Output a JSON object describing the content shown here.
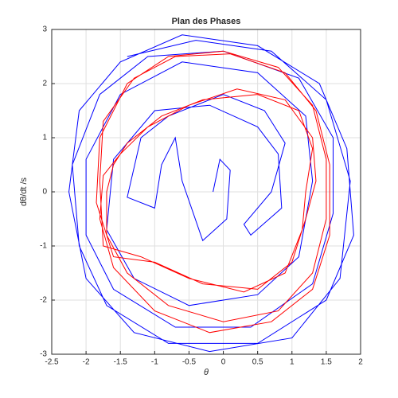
{
  "chart_data": {
    "type": "line",
    "title": "Plan des Phases",
    "x_label": "θ",
    "y_label": "dθ/dt /s",
    "xlim": [
      -2.5,
      2
    ],
    "xticks": [
      -2.5,
      -2,
      -1.5,
      -1,
      -0.5,
      0,
      0.5,
      1,
      1.5,
      2
    ],
    "ylim": [
      -3,
      3
    ],
    "yticks": [
      -3,
      -2,
      -1,
      0,
      1,
      2,
      3
    ],
    "grid": true,
    "series": [
      {
        "color": "#0000ff",
        "x": [
          -0.15,
          -0.05,
          0.1,
          0.05,
          -0.3,
          -0.6,
          -0.7,
          -0.9,
          -1.0,
          -1.4,
          -1.2,
          -0.8,
          0.0,
          0.6,
          0.9,
          0.7,
          0.3,
          0.4,
          0.85,
          0.8,
          0.5,
          -0.2,
          -1.0,
          -1.6,
          -1.7,
          -1.3,
          -0.5,
          0.5,
          1.1,
          1.3,
          1.2,
          0.5,
          -0.6,
          -1.5,
          -2.0,
          -2.0,
          -1.6,
          -0.7,
          0.4,
          1.3,
          1.6,
          1.6,
          1.1,
          0.0,
          -1.1,
          -1.8,
          -2.2,
          -2.1,
          -1.7,
          -0.8,
          0.5,
          1.5,
          1.9,
          1.8,
          1.4,
          0.5,
          -0.6,
          -1.5,
          -2.1,
          -2.25,
          -2.0,
          -1.3,
          -0.2,
          1.0,
          1.7,
          1.85,
          1.5,
          0.7,
          -0.4,
          -1.4
        ],
        "values": [
          0.0,
          0.6,
          0.4,
          -0.5,
          -0.9,
          0.2,
          1.0,
          0.5,
          -0.3,
          -0.1,
          1.0,
          1.4,
          1.8,
          1.5,
          0.9,
          0.0,
          -0.6,
          -0.8,
          -0.3,
          0.7,
          1.2,
          1.6,
          1.5,
          0.6,
          -0.7,
          -1.6,
          -2.1,
          -1.9,
          -1.2,
          0.2,
          1.4,
          2.2,
          2.4,
          1.8,
          0.6,
          -0.8,
          -1.8,
          -2.5,
          -2.5,
          -1.7,
          -0.4,
          1.0,
          2.1,
          2.6,
          2.5,
          1.8,
          0.5,
          -1.0,
          -2.1,
          -2.8,
          -2.8,
          -2.0,
          -0.8,
          0.8,
          2.0,
          2.7,
          2.9,
          2.4,
          1.5,
          0.0,
          -1.6,
          -2.6,
          -2.95,
          -2.7,
          -1.6,
          0.2,
          1.7,
          2.6,
          2.8,
          2.5
        ]
      },
      {
        "color": "#ff0000",
        "x": [
          1.2,
          1.3,
          1.1,
          0.5,
          -0.3,
          -0.9,
          -1.4,
          -1.6,
          -1.7,
          -1.7,
          -1.4,
          -0.8,
          0.0,
          0.8,
          1.3,
          1.5,
          1.5,
          1.3,
          0.8,
          0.0,
          -0.8,
          -1.4,
          -1.8,
          -1.85,
          -1.6,
          -1.0,
          -0.3,
          0.5,
          1.0,
          1.2,
          1.35,
          1.3,
          0.9,
          0.2,
          -0.5,
          -1.1,
          -1.5,
          -1.75,
          -1.8,
          -1.6,
          -1.0,
          -0.2,
          0.7,
          1.3,
          1.55,
          1.55,
          1.35,
          0.9,
          0.1,
          -0.7,
          -1.3,
          -1.75,
          -1.8,
          -1.75,
          -1.2,
          -0.5,
          0.3,
          0.9,
          1.15,
          1.2
        ],
        "values": [
          0.0,
          0.8,
          1.5,
          1.8,
          1.7,
          1.4,
          0.9,
          0.5,
          0.0,
          -0.8,
          -1.5,
          -2.1,
          -2.4,
          -2.2,
          -1.5,
          -0.5,
          0.6,
          1.6,
          2.3,
          2.6,
          2.5,
          2.0,
          1.0,
          -0.2,
          -1.2,
          -1.3,
          -1.7,
          -1.8,
          -1.3,
          -0.5,
          0.2,
          1.0,
          1.7,
          1.9,
          1.6,
          1.2,
          0.7,
          0.3,
          -0.5,
          -1.4,
          -2.2,
          -2.6,
          -2.4,
          -1.8,
          -0.8,
          0.5,
          1.5,
          2.2,
          2.55,
          2.5,
          2.1,
          1.3,
          0.2,
          -1.0,
          -1.2,
          -1.6,
          -1.85,
          -1.5,
          -0.7,
          0.0
        ]
      }
    ]
  }
}
